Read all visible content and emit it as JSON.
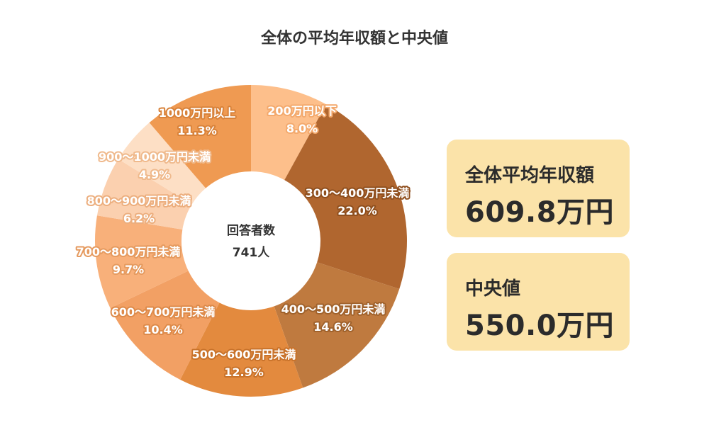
{
  "title": "全体の平均年収額と中央値",
  "chart_data": {
    "type": "pie",
    "title": "全体の平均年収額と中央値",
    "center_label": "回答者数",
    "center_value": "741人",
    "slices": [
      {
        "label": "200万円以下",
        "value": 8.0,
        "display": "8.0%",
        "color": "#fdbf8b",
        "label_stroke": "#f3a96d"
      },
      {
        "label": "300～400万円未満",
        "value": 22.0,
        "display": "22.0%",
        "color": "#b0662f",
        "label_stroke": "#8f4f1e"
      },
      {
        "label": "400～500万円未満",
        "value": 14.6,
        "display": "14.6%",
        "color": "#bf7a3f",
        "label_stroke": "#a0622c"
      },
      {
        "label": "500～600万円未満",
        "value": 12.9,
        "display": "12.9%",
        "color": "#e38a3e",
        "label_stroke": "#c8722a"
      },
      {
        "label": "600～700万円未満",
        "value": 10.4,
        "display": "10.4%",
        "color": "#f2a064",
        "label_stroke": "#dd8a4a"
      },
      {
        "label": "700～800万円未満",
        "value": 9.7,
        "display": "9.7%",
        "color": "#f8b07a",
        "label_stroke": "#e59a5f"
      },
      {
        "label": "800～900万円未満",
        "value": 6.2,
        "display": "6.2%",
        "color": "#fbd0af",
        "label_stroke": "#ecae7e"
      },
      {
        "label": "900～1000万円未満",
        "value": 4.9,
        "display": "4.9%",
        "color": "#fddfc5",
        "label_stroke": "#efb98c"
      },
      {
        "label": "1000万円以上",
        "value": 11.3,
        "display": "11.3%",
        "color": "#ef9a52",
        "label_stroke": "#d8823a"
      }
    ]
  },
  "stats": {
    "average_label": "全体平均年収額",
    "average_value": "609.8万円",
    "median_label": "中央値",
    "median_value": "550.0万円"
  },
  "colors": {
    "box_background": "#fbe3a9",
    "text_dark": "#2b2b2b"
  }
}
